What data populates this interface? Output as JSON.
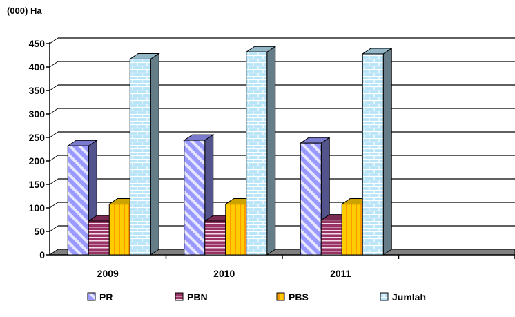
{
  "chart_data": {
    "type": "bar",
    "unit_label": "(000) Ha",
    "categories": [
      "2009",
      "2010",
      "2011"
    ],
    "ylim": [
      0,
      450
    ],
    "yticks": [
      0,
      50,
      100,
      150,
      200,
      250,
      300,
      350,
      400,
      450
    ],
    "series": [
      {
        "name": "PR",
        "values": [
          232,
          244,
          238
        ],
        "color": "#9999ff",
        "pattern": "diagonal-stripes"
      },
      {
        "name": "PBN",
        "values": [
          72,
          72,
          74
        ],
        "color": "#993366",
        "pattern": "horizontal-lines"
      },
      {
        "name": "PBS",
        "values": [
          108,
          108,
          108
        ],
        "color": "#ffcc00",
        "pattern": "vertical-stripes"
      },
      {
        "name": "Jumlah",
        "values": [
          417,
          432,
          428
        ],
        "color": "#b8e4f8",
        "pattern": "brick"
      }
    ],
    "grid": true,
    "legend_position": "bottom"
  }
}
